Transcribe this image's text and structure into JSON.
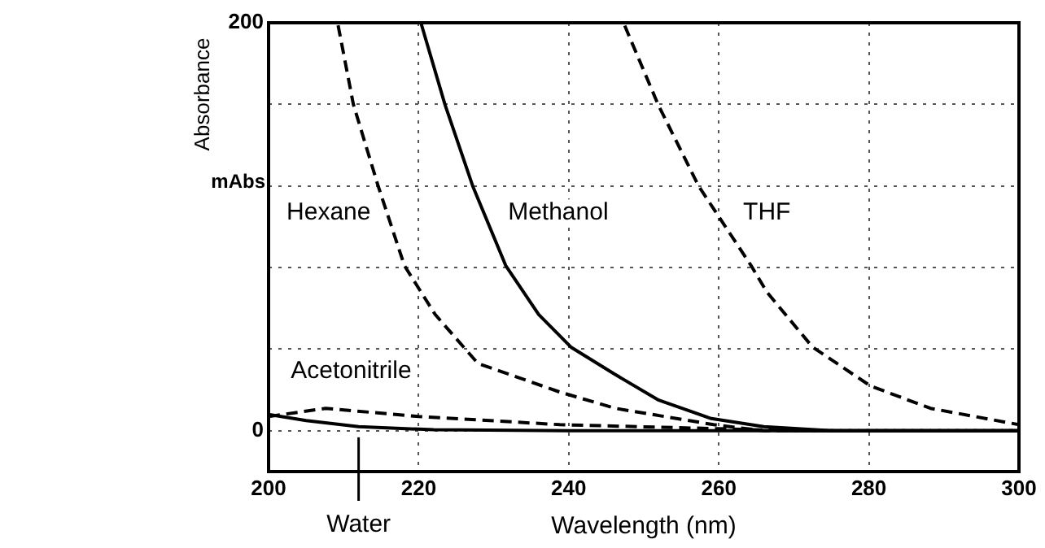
{
  "chart_data": {
    "type": "line",
    "xlabel": "Wavelength (nm)",
    "ylabel": "Absorbance",
    "annotations": [
      "mAbs"
    ],
    "xlim": [
      200,
      300
    ],
    "xticks": [
      200,
      220,
      240,
      260,
      280,
      300
    ],
    "ylim": [
      -20,
      200
    ],
    "yticks": [
      0,
      {
        "value": 40,
        "label": null
      },
      {
        "value": 80,
        "label": null
      },
      {
        "value": 120,
        "label": null
      },
      {
        "value": 160,
        "label": null
      },
      200
    ],
    "grid": true,
    "legend": false,
    "marker": "none",
    "series": [
      {
        "name": "Hexane",
        "color": "#000000",
        "line_style": "dashed",
        "x": [
          200,
          209.2,
          211.3,
          214.6,
          218.1,
          222.2,
          227.9,
          238.8,
          246.2,
          259.3,
          266,
          300
        ],
        "values": [
          200,
          200,
          160,
          120,
          81,
          57,
          33,
          19,
          11,
          3,
          0,
          0
        ]
      },
      {
        "name": "Methanol",
        "color": "#000000",
        "line_style": "solid",
        "x": [
          200,
          220.3,
          223.5,
          227.2,
          231.6,
          236,
          240.3,
          246,
          252,
          259,
          266,
          275,
          300
        ],
        "values": [
          200,
          200,
          160,
          120,
          81,
          57,
          41,
          28,
          15,
          6,
          2,
          0,
          0
        ]
      },
      {
        "name": "THF",
        "color": "#000000",
        "line_style": "dashed",
        "x": [
          200,
          247.3,
          251.9,
          257.3,
          264.3,
          266.4,
          272.5,
          280.2,
          288.2,
          300
        ],
        "values": [
          200,
          200,
          160,
          120,
          81,
          68,
          41,
          22,
          11,
          3
        ]
      },
      {
        "name": "Acetonitrile",
        "color": "#000000",
        "line_style": "dashed",
        "x": [
          200,
          207.6,
          220,
          238.8,
          260,
          270,
          300
        ],
        "values": [
          7,
          11,
          7,
          3,
          1,
          0,
          0
        ]
      },
      {
        "name": "Water",
        "color": "#000000",
        "line_style": "solid",
        "x": [
          200,
          205,
          212,
          222,
          240,
          300
        ],
        "values": [
          8,
          5,
          2,
          0.5,
          0,
          0
        ]
      }
    ]
  }
}
